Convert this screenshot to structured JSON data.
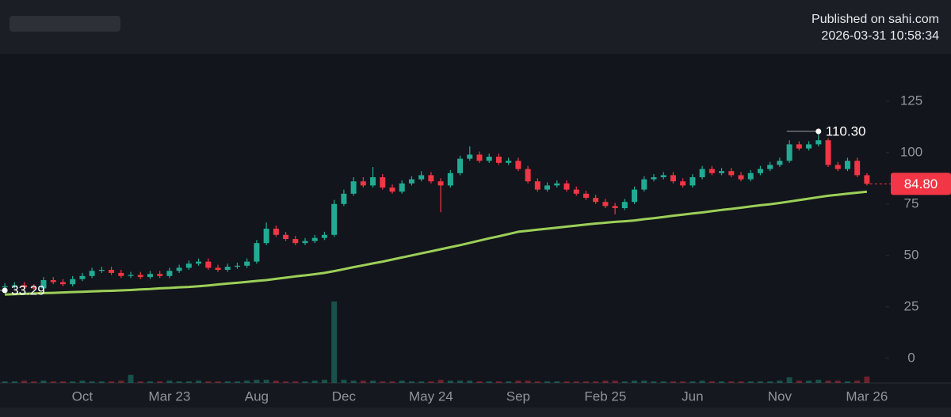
{
  "header": {
    "publisher": "Published on sahi.com",
    "timestamp": "2026-03-31 10:58:34"
  },
  "chart_data": {
    "type": "candlestick",
    "categories": [
      null,
      null,
      null,
      null,
      null,
      null,
      null,
      null,
      "Oct",
      null,
      null,
      null,
      null,
      null,
      null,
      null,
      null,
      "Mar 23",
      null,
      null,
      null,
      null,
      null,
      null,
      null,
      null,
      "Aug",
      null,
      null,
      null,
      null,
      null,
      null,
      null,
      null,
      "Dec",
      null,
      null,
      null,
      null,
      null,
      null,
      null,
      null,
      "May 24",
      null,
      null,
      null,
      null,
      null,
      null,
      null,
      null,
      "Sep",
      null,
      null,
      null,
      null,
      null,
      null,
      null,
      null,
      "Feb 25",
      null,
      null,
      null,
      null,
      null,
      null,
      null,
      null,
      "Jun",
      null,
      null,
      null,
      null,
      null,
      null,
      null,
      null,
      "Nov",
      null,
      null,
      null,
      null,
      null,
      null,
      null,
      null,
      "Mar 26"
    ],
    "opens": [
      34.5,
      35,
      35.5,
      34.5,
      34,
      38,
      37,
      36,
      38.5,
      40,
      42.5,
      43,
      41.5,
      40,
      40.5,
      39.5,
      41,
      40,
      42.5,
      44,
      46,
      47,
      44,
      43,
      44.5,
      45,
      47,
      56,
      63,
      60,
      58,
      56,
      57,
      58.5,
      60,
      75,
      80,
      86,
      84,
      88,
      83,
      81,
      85,
      87,
      89,
      86,
      84,
      90,
      97,
      99,
      96,
      98,
      95,
      96,
      92,
      86,
      82,
      84,
      85,
      82,
      80,
      78,
      76,
      74,
      73,
      76,
      82,
      87,
      88,
      89,
      86,
      84,
      88,
      92,
      90,
      91,
      89,
      87,
      90,
      92,
      94,
      96,
      104,
      102,
      104,
      106,
      94,
      92,
      96,
      89
    ],
    "highs": [
      36.5,
      37,
      37,
      36,
      39.5,
      39.5,
      38.5,
      40,
      41.5,
      44,
      44.5,
      44.5,
      43,
      42,
      42,
      42.5,
      42.5,
      44,
      45.5,
      47.5,
      48.5,
      48.5,
      45.5,
      46,
      46.5,
      48.5,
      57.5,
      66,
      64.5,
      61.5,
      59.5,
      58.5,
      60,
      61.5,
      77,
      82,
      88,
      88,
      93,
      89.5,
      84.5,
      86.5,
      88.5,
      91,
      90.5,
      87.5,
      91.5,
      98.5,
      103,
      100.5,
      99.5,
      99.5,
      97.5,
      97.5,
      93.5,
      87.5,
      85.5,
      86.5,
      86.5,
      83.5,
      81.5,
      79.5,
      77.5,
      75.5,
      77.5,
      83.5,
      88.5,
      89.5,
      90.5,
      90.5,
      87.5,
      89.5,
      93.5,
      93.5,
      92.5,
      92.5,
      90.5,
      91.5,
      93.5,
      95.5,
      97.5,
      106,
      105.5,
      105.5,
      110.3,
      107,
      95.5,
      97.5,
      97.5,
      90
    ],
    "lows": [
      33,
      34,
      33.5,
      33.29,
      33.5,
      36,
      35,
      35,
      37.5,
      39,
      41.5,
      40.5,
      39,
      39,
      38.5,
      38.5,
      39,
      39,
      41.5,
      43,
      45,
      43,
      42,
      42,
      43.5,
      44,
      46,
      55,
      59,
      57,
      55,
      55,
      56,
      57.5,
      59,
      74,
      79,
      83,
      83,
      82,
      80,
      80,
      84,
      86,
      85,
      71,
      83,
      89,
      96,
      95,
      95,
      94,
      94,
      91,
      85,
      81,
      81,
      83,
      81,
      79,
      77,
      75,
      73,
      70,
      72,
      75,
      81,
      86,
      87,
      85,
      83,
      83,
      87,
      89,
      89,
      88,
      86,
      86,
      89,
      91,
      93,
      95,
      101,
      101,
      103,
      93,
      91,
      91,
      88,
      84
    ],
    "closes": [
      35,
      35.5,
      34.5,
      34,
      38,
      37,
      36,
      38.5,
      40,
      42.5,
      43,
      41.5,
      40,
      40.5,
      39.5,
      41,
      40,
      42.5,
      44,
      46,
      47,
      44,
      43,
      44.5,
      45,
      47,
      56,
      63,
      60,
      58,
      56,
      57,
      58.5,
      60,
      75,
      80,
      86,
      84,
      88,
      83,
      81,
      85,
      87,
      89,
      86,
      84,
      90,
      97,
      99,
      96,
      98,
      95,
      96,
      92,
      86,
      82,
      84,
      85,
      82,
      80,
      78,
      76,
      74,
      73,
      76,
      82,
      87,
      88,
      89,
      86,
      84,
      88,
      92,
      90,
      91,
      89,
      87,
      90,
      92,
      94,
      96,
      104,
      102,
      104,
      106,
      94,
      92,
      96,
      89,
      84.8
    ],
    "ma": {
      "color": "#9ccf58",
      "values": [
        31,
        31.2,
        31.3,
        31.5,
        31.7,
        31.8,
        32,
        32.2,
        32.3,
        32.5,
        32.7,
        32.8,
        33,
        33.2,
        33.5,
        33.7,
        34,
        34.2,
        34.5,
        34.7,
        35,
        35.4,
        35.9,
        36.3,
        36.7,
        37.1,
        37.6,
        38,
        38.6,
        39.2,
        39.8,
        40.3,
        40.9,
        41.5,
        42.4,
        43.3,
        44.3,
        45.2,
        46.1,
        47,
        48,
        49,
        50,
        51,
        52,
        53,
        54,
        55,
        56.1,
        57.2,
        58.3,
        59.3,
        60.4,
        61.5,
        62,
        62.5,
        63,
        63.5,
        64,
        64.5,
        65,
        65.5,
        65.9,
        66.3,
        66.6,
        67,
        67.6,
        68.1,
        68.7,
        69.3,
        69.8,
        70.4,
        70.9,
        71.5,
        72.1,
        72.6,
        73.2,
        73.8,
        74.4,
        74.9,
        75.5,
        76.2,
        76.9,
        77.6,
        78.3,
        79,
        79.5,
        80,
        80.5,
        81
      ]
    },
    "volume": [
      2,
      2,
      3,
      2,
      3,
      2,
      2,
      2,
      3,
      2,
      2,
      2,
      3,
      10,
      2,
      2,
      2,
      3,
      2,
      2,
      3,
      2,
      2,
      2,
      2,
      3,
      4,
      4,
      3,
      2,
      2,
      2,
      3,
      4,
      100,
      4,
      3,
      3,
      3,
      2,
      2,
      3,
      2,
      2,
      2,
      4,
      3,
      3,
      3,
      2,
      2,
      2,
      2,
      3,
      3,
      2,
      2,
      2,
      2,
      2,
      2,
      2,
      3,
      3,
      2,
      3,
      3,
      2,
      2,
      2,
      2,
      2,
      3,
      2,
      2,
      2,
      2,
      2,
      2,
      2,
      3,
      7,
      3,
      3,
      4,
      3,
      3,
      2,
      3,
      8
    ],
    "volume_lim": [
      0,
      100
    ],
    "up_color": "#22ab94",
    "down_color": "#f23645",
    "ylim": [
      -12,
      148
    ],
    "yticks": [
      0,
      25,
      50,
      75,
      100,
      125
    ],
    "annotations": [
      {
        "text": "110.30"
      },
      {
        "text": "33.29"
      },
      {
        "text": "84.80"
      }
    ]
  }
}
